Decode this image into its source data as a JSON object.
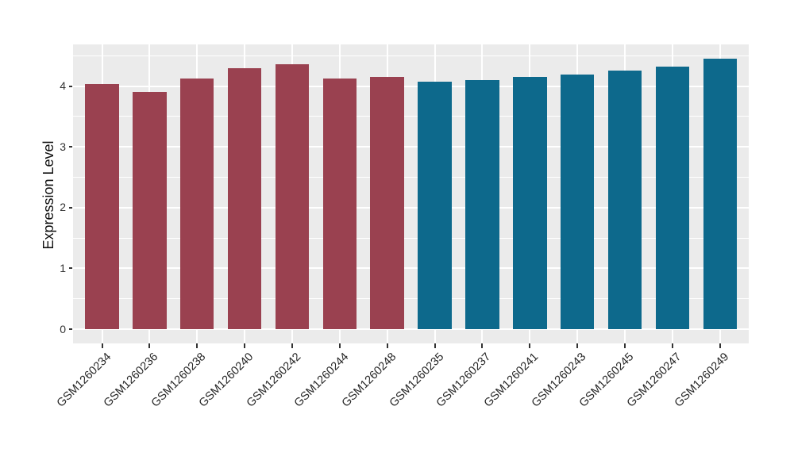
{
  "chart_data": {
    "type": "bar",
    "title": "",
    "xlabel": "",
    "ylabel": "Expression Level",
    "categories": [
      "GSM1260234",
      "GSM1260236",
      "GSM1260238",
      "GSM1260240",
      "GSM1260242",
      "GSM1260244",
      "GSM1260248",
      "GSM1260235",
      "GSM1260237",
      "GSM1260241",
      "GSM1260243",
      "GSM1260245",
      "GSM1260247",
      "GSM1260249"
    ],
    "values": [
      4.03,
      3.9,
      4.12,
      4.29,
      4.36,
      4.13,
      4.15,
      4.07,
      4.1,
      4.15,
      4.19,
      4.26,
      4.32,
      4.45
    ],
    "bar_groups": [
      "a",
      "a",
      "a",
      "a",
      "a",
      "a",
      "a",
      "b",
      "b",
      "b",
      "b",
      "b",
      "b",
      "b"
    ],
    "yticks": [
      0,
      1,
      2,
      3,
      4
    ],
    "ylim": [
      -0.24,
      4.7
    ],
    "grid": "on",
    "legend_position": "none",
    "x_label_rotation_deg": 45
  },
  "style": {
    "group_a_color": "#9a4150",
    "group_b_color": "#0d698c",
    "panel_background": "#ebebeb",
    "grid_color": "#ffffff",
    "tick_text_color": "#333333",
    "axis_title_color": "#111111"
  }
}
